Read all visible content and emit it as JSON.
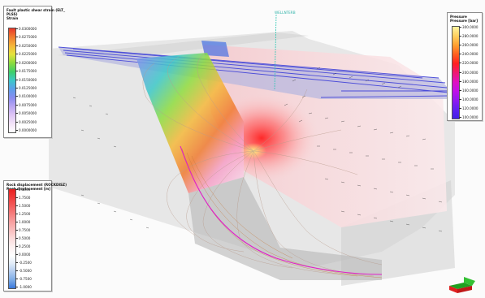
{
  "scene": {
    "well_label": "WELLNTERB",
    "axis_colors": {
      "x": "#e02020",
      "y": "#20a020",
      "z": "#2060e0"
    }
  },
  "legends": {
    "strain": {
      "title_lines": [
        "Fault plastic shear strain (ELT_",
        "PLSS)",
        "Strain"
      ],
      "ticks": [
        "0.0300000",
        "0.0275000",
        "0.0250000",
        "0.0225000",
        "0.0200000",
        "0.0175000",
        "0.0150000",
        "0.0125000",
        "0.0100000",
        "0.0075000",
        "0.0050000",
        "0.0025000",
        "0.0000000"
      ],
      "colors": [
        "#e8382a",
        "#f07a30",
        "#f5b83a",
        "#e4e33c",
        "#8fdc3e",
        "#3ccf6a",
        "#3cc8c8",
        "#5aa0ea",
        "#8a8cf0",
        "#b9a6f2",
        "#ddc4f5",
        "#f3e4f8",
        "#ffffff"
      ]
    },
    "displacement": {
      "title_lines": [
        "Rock displacement (ROCKDISZ)",
        "Rock displacement [m]"
      ],
      "ticks": [
        "2.0000",
        "1.7500",
        "1.5000",
        "1.2500",
        "1.0000",
        "0.7500",
        "0.5000",
        "0.2500",
        "0.0000",
        "-0.2500",
        "-0.5000",
        "-0.7500",
        "-1.0000"
      ],
      "colors": [
        "#e82020",
        "#f03a3a",
        "#f35c5c",
        "#f57e7e",
        "#f7a0a0",
        "#f9c0c0",
        "#fbdcdc",
        "#fdf0f0",
        "#ffffff",
        "#e2ecf8",
        "#b4cdf0",
        "#7aaae6",
        "#3a78dc"
      ]
    },
    "pressure": {
      "title_lines": [
        "Pressure",
        "Pressure [bar]"
      ],
      "ticks": [
        "300.0000",
        "280.0000",
        "260.0000",
        "240.0000",
        "220.0000",
        "200.0000",
        "180.0000",
        "160.0000",
        "140.0000",
        "120.0000",
        "100.0000"
      ],
      "colors": [
        "#fff4a0",
        "#ffd060",
        "#ffa030",
        "#ff6020",
        "#ff2020",
        "#f01870",
        "#e010c0",
        "#c010e8",
        "#9018f0",
        "#6020f0",
        "#4020e8"
      ]
    }
  }
}
